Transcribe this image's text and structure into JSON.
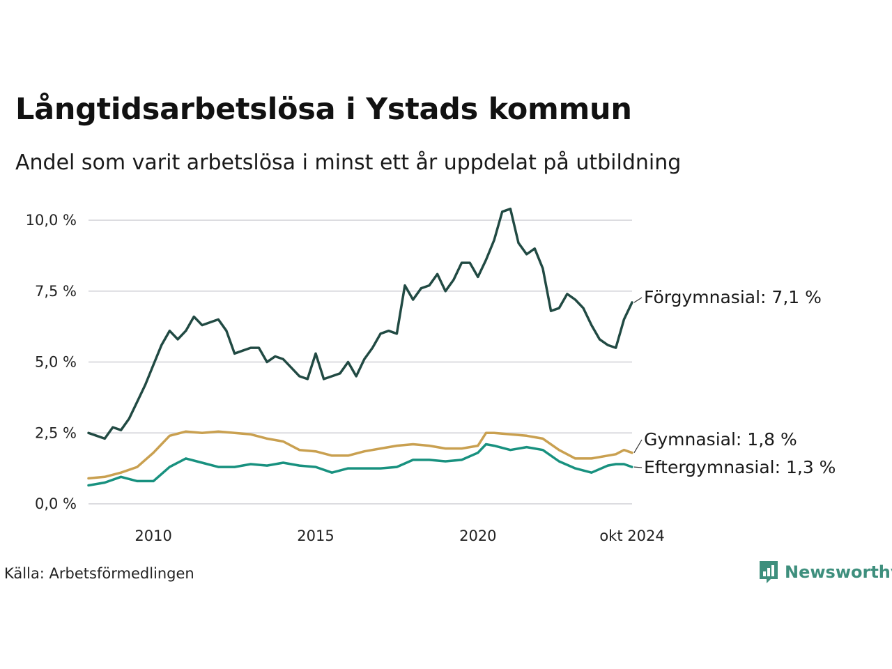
{
  "title": "Långtidsarbetslösa i Ystads kommun",
  "subtitle": "Andel som varit arbetslösa i minst ett år uppdelat på utbildning",
  "source": "Källa: Arbetsförmedlingen",
  "brand": {
    "name": "Newsworthy",
    "icon": "newsworthy-logo-icon"
  },
  "colors": {
    "forgymnasial": "#214a43",
    "gymnasial": "#c9a050",
    "eftergymnasial": "#18917f",
    "grid": "#dcdce0",
    "brand": "#3e8f7d"
  },
  "chart_data": {
    "type": "line",
    "title": "Långtidsarbetslösa i Ystads kommun",
    "subtitle": "Andel som varit arbetslösa i minst ett år uppdelat på utbildning",
    "xlabel": "",
    "ylabel": "",
    "ylim": [
      0,
      10.5
    ],
    "y_ticks": [
      {
        "value": 0,
        "label": "0,0 %"
      },
      {
        "value": 2.5,
        "label": "2,5 %"
      },
      {
        "value": 5,
        "label": "5,0 %"
      },
      {
        "value": 7.5,
        "label": "7,5 %"
      },
      {
        "value": 10,
        "label": "10,0 %"
      }
    ],
    "x_ticks": [
      {
        "value": 2010,
        "label": "2010"
      },
      {
        "value": 2015,
        "label": "2015"
      },
      {
        "value": 2020,
        "label": "2020"
      },
      {
        "value": 2024.75,
        "label": "okt 2024"
      }
    ],
    "x_range": [
      2008.0,
      2024.75
    ],
    "grid": true,
    "legend": "labels at line ends (right)",
    "series": [
      {
        "name": "Förgymnasial",
        "label": "Förgymnasial: 7,1 %",
        "color": "#214a43",
        "x": [
          2008.0,
          2008.25,
          2008.5,
          2008.75,
          2009.0,
          2009.25,
          2009.5,
          2009.75,
          2010.0,
          2010.25,
          2010.5,
          2010.75,
          2011.0,
          2011.25,
          2011.5,
          2011.75,
          2012.0,
          2012.25,
          2012.5,
          2012.75,
          2013.0,
          2013.25,
          2013.5,
          2013.75,
          2014.0,
          2014.25,
          2014.5,
          2014.75,
          2015.0,
          2015.25,
          2015.5,
          2015.75,
          2016.0,
          2016.25,
          2016.5,
          2016.75,
          2017.0,
          2017.25,
          2017.5,
          2017.75,
          2018.0,
          2018.25,
          2018.5,
          2018.75,
          2019.0,
          2019.25,
          2019.5,
          2019.75,
          2020.0,
          2020.25,
          2020.5,
          2020.75,
          2021.0,
          2021.25,
          2021.5,
          2021.75,
          2022.0,
          2022.25,
          2022.5,
          2022.75,
          2023.0,
          2023.25,
          2023.5,
          2023.75,
          2024.0,
          2024.25,
          2024.5,
          2024.75
        ],
        "values": [
          2.5,
          2.4,
          2.3,
          2.7,
          2.6,
          3.0,
          3.6,
          4.2,
          4.9,
          5.6,
          6.1,
          5.8,
          6.1,
          6.6,
          6.3,
          6.4,
          6.5,
          6.1,
          5.3,
          5.4,
          5.5,
          5.5,
          5.0,
          5.2,
          5.1,
          4.8,
          4.5,
          4.4,
          5.3,
          4.4,
          4.5,
          4.6,
          5.0,
          4.5,
          5.1,
          5.5,
          6.0,
          6.1,
          6.0,
          7.7,
          7.2,
          7.6,
          7.7,
          8.1,
          7.5,
          7.9,
          8.5,
          8.5,
          8.0,
          8.6,
          9.3,
          10.3,
          10.4,
          9.2,
          8.8,
          9.0,
          8.3,
          6.8,
          6.9,
          7.4,
          7.2,
          6.9,
          6.3,
          5.8,
          5.6,
          5.5,
          6.5,
          7.1
        ]
      },
      {
        "name": "Gymnasial",
        "label": "Gymnasial: 1,8 %",
        "color": "#c9a050",
        "x": [
          2008.0,
          2008.5,
          2009.0,
          2009.5,
          2010.0,
          2010.5,
          2011.0,
          2011.5,
          2012.0,
          2012.5,
          2013.0,
          2013.5,
          2014.0,
          2014.5,
          2015.0,
          2015.5,
          2016.0,
          2016.5,
          2017.0,
          2017.5,
          2018.0,
          2018.5,
          2019.0,
          2019.5,
          2020.0,
          2020.25,
          2020.5,
          2021.0,
          2021.5,
          2022.0,
          2022.5,
          2023.0,
          2023.5,
          2024.0,
          2024.25,
          2024.5,
          2024.75
        ],
        "values": [
          0.9,
          0.95,
          1.1,
          1.3,
          1.8,
          2.4,
          2.55,
          2.5,
          2.55,
          2.5,
          2.45,
          2.3,
          2.2,
          1.9,
          1.85,
          1.7,
          1.7,
          1.85,
          1.95,
          2.05,
          2.1,
          2.05,
          1.95,
          1.95,
          2.05,
          2.5,
          2.5,
          2.45,
          2.4,
          2.3,
          1.9,
          1.6,
          1.6,
          1.7,
          1.75,
          1.9,
          1.8
        ]
      },
      {
        "name": "Eftergymnasial",
        "label": "Eftergymnasial: 1,3 %",
        "color": "#18917f",
        "x": [
          2008.0,
          2008.5,
          2009.0,
          2009.5,
          2010.0,
          2010.5,
          2011.0,
          2011.5,
          2012.0,
          2012.5,
          2013.0,
          2013.5,
          2014.0,
          2014.5,
          2015.0,
          2015.5,
          2016.0,
          2016.5,
          2017.0,
          2017.5,
          2018.0,
          2018.5,
          2019.0,
          2019.5,
          2020.0,
          2020.25,
          2020.5,
          2021.0,
          2021.5,
          2022.0,
          2022.5,
          2023.0,
          2023.5,
          2024.0,
          2024.25,
          2024.5,
          2024.75
        ],
        "values": [
          0.65,
          0.75,
          0.95,
          0.8,
          0.8,
          1.3,
          1.6,
          1.45,
          1.3,
          1.3,
          1.4,
          1.35,
          1.45,
          1.35,
          1.3,
          1.1,
          1.25,
          1.25,
          1.25,
          1.3,
          1.55,
          1.55,
          1.5,
          1.55,
          1.8,
          2.1,
          2.05,
          1.9,
          2.0,
          1.9,
          1.5,
          1.25,
          1.1,
          1.35,
          1.4,
          1.4,
          1.3
        ]
      }
    ]
  }
}
